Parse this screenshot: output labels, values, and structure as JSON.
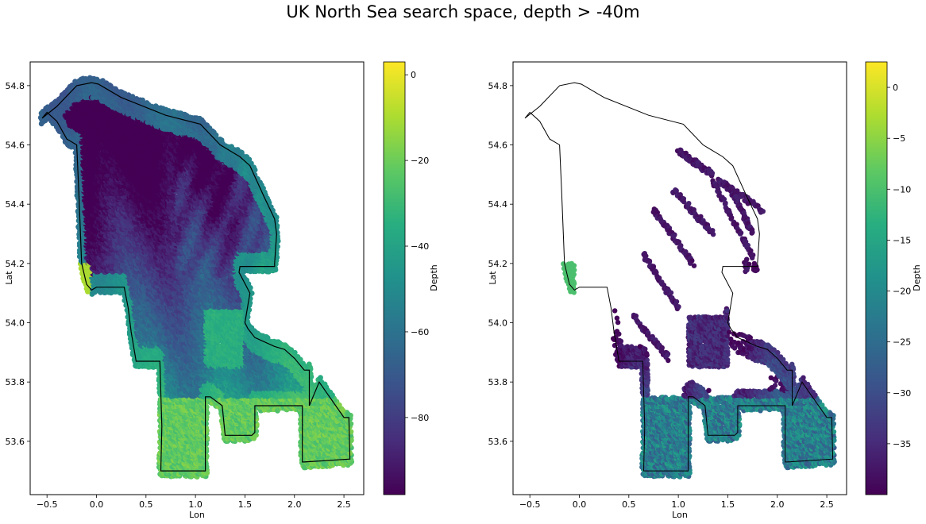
{
  "figure": {
    "suptitle": "UK North Sea search space, depth > -40m"
  },
  "chart_data": [
    {
      "type": "scatter",
      "title": "",
      "xlabel": "Lon",
      "ylabel": "Lat",
      "xlim": [
        -0.67,
        2.7
      ],
      "ylim": [
        53.42,
        54.88
      ],
      "xticks": [
        -0.5,
        0.0,
        0.5,
        1.0,
        1.5,
        2.0,
        2.5
      ],
      "xtick_labels": [
        "−0.5",
        "0.0",
        "0.5",
        "1.0",
        "1.5",
        "2.0",
        "2.5"
      ],
      "yticks": [
        53.6,
        53.8,
        54.0,
        54.2,
        54.4,
        54.6,
        54.8
      ],
      "ytick_labels": [
        "53.6",
        "53.8",
        "54.0",
        "54.2",
        "54.4",
        "54.6",
        "54.8"
      ],
      "colormap": "viridis",
      "colorbar": {
        "label": "Depth",
        "range": [
          -98,
          3
        ],
        "ticks": [
          0,
          -20,
          -40,
          -60,
          -80
        ],
        "tick_labels": [
          "0",
          "−20",
          "−40",
          "−60",
          "−80"
        ]
      },
      "boundary": [
        [
          -0.05,
          54.81
        ],
        [
          0.02,
          54.805
        ],
        [
          0.25,
          54.76
        ],
        [
          0.7,
          54.7
        ],
        [
          1.05,
          54.67
        ],
        [
          1.25,
          54.6
        ],
        [
          1.45,
          54.56
        ],
        [
          1.55,
          54.53
        ],
        [
          1.7,
          54.42
        ],
        [
          1.8,
          54.35
        ],
        [
          1.82,
          54.3
        ],
        [
          1.8,
          54.2
        ],
        [
          1.8,
          54.19
        ],
        [
          1.6,
          54.19
        ],
        [
          1.45,
          54.19
        ],
        [
          1.44,
          54.17
        ],
        [
          1.55,
          54.1
        ],
        [
          1.5,
          54.0
        ],
        [
          1.53,
          53.98
        ],
        [
          1.6,
          53.95
        ],
        [
          1.8,
          53.92
        ],
        [
          1.9,
          53.91
        ],
        [
          2.0,
          53.88
        ],
        [
          2.1,
          53.84
        ],
        [
          2.15,
          53.84
        ],
        [
          2.15,
          53.72
        ],
        [
          2.25,
          53.8
        ],
        [
          2.5,
          53.68
        ],
        [
          2.55,
          53.68
        ],
        [
          2.56,
          53.54
        ],
        [
          2.1,
          53.53
        ],
        [
          2.08,
          53.53
        ],
        [
          2.08,
          53.72
        ],
        [
          1.95,
          53.72
        ],
        [
          1.9,
          53.72
        ],
        [
          1.85,
          53.72
        ],
        [
          1.6,
          53.72
        ],
        [
          1.6,
          53.63
        ],
        [
          1.57,
          53.62
        ],
        [
          1.3,
          53.62
        ],
        [
          1.27,
          53.72
        ],
        [
          1.15,
          53.75
        ],
        [
          1.1,
          53.75
        ],
        [
          1.1,
          53.5
        ],
        [
          0.95,
          53.5
        ],
        [
          0.7,
          53.5
        ],
        [
          0.65,
          53.5
        ],
        [
          0.66,
          53.65
        ],
        [
          0.64,
          53.87
        ],
        [
          0.4,
          53.87
        ],
        [
          0.35,
          53.97
        ],
        [
          0.32,
          54.05
        ],
        [
          0.28,
          54.12
        ],
        [
          0.0,
          54.12
        ],
        [
          -0.05,
          54.11
        ],
        [
          -0.1,
          54.13
        ],
        [
          -0.15,
          54.2
        ],
        [
          -0.18,
          54.45
        ],
        [
          -0.2,
          54.6
        ],
        [
          -0.3,
          54.62
        ],
        [
          -0.4,
          54.68
        ],
        [
          -0.5,
          54.71
        ],
        [
          -0.55,
          54.69
        ],
        [
          -0.4,
          54.73
        ],
        [
          -0.2,
          54.8
        ],
        [
          -0.05,
          54.81
        ]
      ]
    },
    {
      "type": "scatter",
      "title": "",
      "xlabel": "Lon",
      "ylabel": "Lat",
      "xlim": [
        -0.67,
        2.7
      ],
      "ylim": [
        53.42,
        54.88
      ],
      "xticks": [
        -0.5,
        0.0,
        0.5,
        1.0,
        1.5,
        2.0,
        2.5
      ],
      "xtick_labels": [
        "−0.5",
        "0.0",
        "0.5",
        "1.0",
        "1.5",
        "2.0",
        "2.5"
      ],
      "yticks": [
        53.6,
        53.8,
        54.0,
        54.2,
        54.4,
        54.6,
        54.8
      ],
      "ytick_labels": [
        "53.6",
        "53.8",
        "54.0",
        "54.2",
        "54.4",
        "54.6",
        "54.8"
      ],
      "colormap": "viridis",
      "colorbar": {
        "label": "Depth",
        "range": [
          -40,
          2.5
        ],
        "ticks": [
          0,
          -5,
          -10,
          -15,
          -20,
          -25,
          -30,
          -35
        ],
        "tick_labels": [
          "0",
          "−5",
          "−10",
          "−15",
          "−20",
          "−25",
          "−30",
          "−35"
        ]
      },
      "filter": "depth > -40"
    }
  ]
}
